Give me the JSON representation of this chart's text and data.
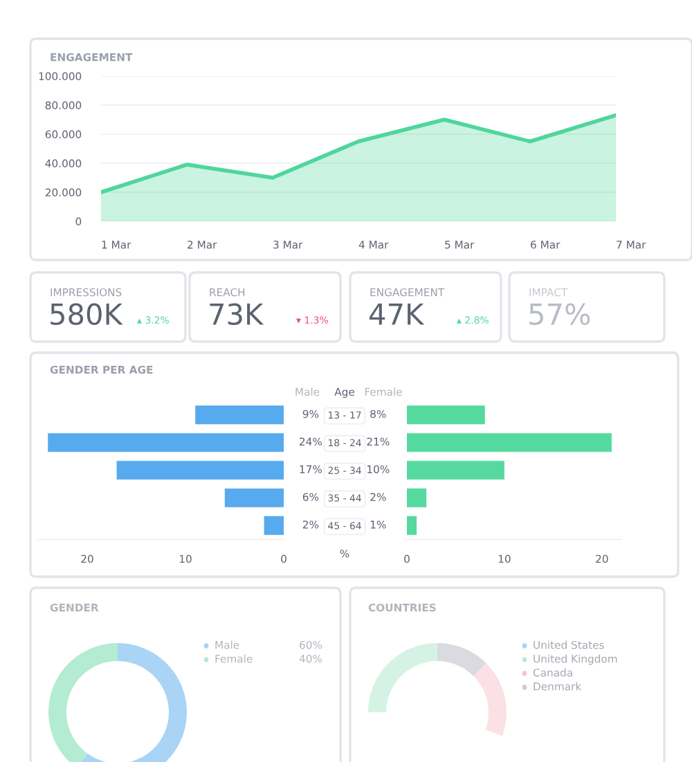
{
  "chart_data": [
    {
      "type": "area",
      "title": "ENGAGEMENT",
      "categories": [
        "1 Mar",
        "2 Mar",
        "3 Mar",
        "4 Mar",
        "5 Mar",
        "6 Mar",
        "7 Mar"
      ],
      "series": [
        {
          "color": "#4fd69c",
          "values": [
            20,
            39,
            30,
            55,
            70,
            55,
            73
          ]
        }
      ],
      "ylim": [
        0,
        100
      ],
      "yticks": [
        0,
        {
          "value": 20,
          "label": "20.000"
        },
        {
          "value": 40,
          "label": "40.000"
        },
        {
          "value": 60,
          "label": "60.000"
        },
        {
          "value": 80,
          "label": "80.000"
        },
        {
          "value": 100,
          "label": "100.000"
        }
      ],
      "grid": "y"
    },
    {
      "type": "other",
      "annotations": [
        "IMPRESSIONS",
        "580K",
        "▴ 3.2%",
        "REACH",
        "73K",
        "▾ 1.3%",
        "ENGAGEMENT",
        "47K",
        "▴ 2.8%",
        "IMPACT",
        "57%"
      ],
      "colors": [
        "#9aa0ab",
        "#5b6270",
        "#4fd69c",
        "#9aa0ab",
        "#5b6270",
        "#f0506e",
        "#9aa0ab",
        "#5b6270",
        "#4fd69c",
        "#c5c9d0",
        "#b8bcc4"
      ]
    },
    {
      "type": "bar",
      "orientation": "horizontal",
      "title": "GENDER PER AGE",
      "categories": [
        "13 - 17",
        "18 - 24",
        "25 - 34",
        "35 - 44",
        "45 - 64"
      ],
      "series": [
        {
          "name": "Male",
          "color": "#56aaed",
          "values": [
            9,
            24,
            17,
            6,
            2
          ],
          "value_labels": [
            "9%",
            "24%",
            "17%",
            "6%",
            "2%"
          ]
        }
      ],
      "xlim": [
        25,
        0
      ],
      "xticks": [
        20,
        10,
        0
      ]
    },
    {
      "type": "bar",
      "orientation": "horizontal",
      "ylabel": "Age",
      "xlabel": "%",
      "categories": [
        null,
        null,
        null,
        null,
        null
      ],
      "series": [
        {
          "name": "Female",
          "color": "#56d99e",
          "values": [
            8,
            21,
            10,
            2,
            1
          ],
          "value_labels": [
            "8%",
            "21%",
            "10%",
            "2%",
            "1%"
          ]
        }
      ],
      "xlim": [
        0,
        22
      ],
      "xticks": [
        0,
        10,
        20
      ],
      "tick_labels": "x"
    },
    {
      "type": "donut",
      "title": "GENDER",
      "categories": [
        "Male",
        "Female"
      ],
      "values": [
        60,
        40
      ],
      "colors": [
        "#a9d4f5",
        "#b3ecd2"
      ],
      "legend": "right",
      "value_labels": [
        "60%",
        "40%"
      ]
    },
    {
      "type": "other",
      "title": "COUNTRIES",
      "annotations": [
        "United States",
        "United Kingdom",
        "Canada",
        "Denmark"
      ],
      "colors": [
        "#a9d4f5",
        "#b3ecd2",
        "#f7c3cd",
        "#c9ccd3"
      ]
    }
  ]
}
